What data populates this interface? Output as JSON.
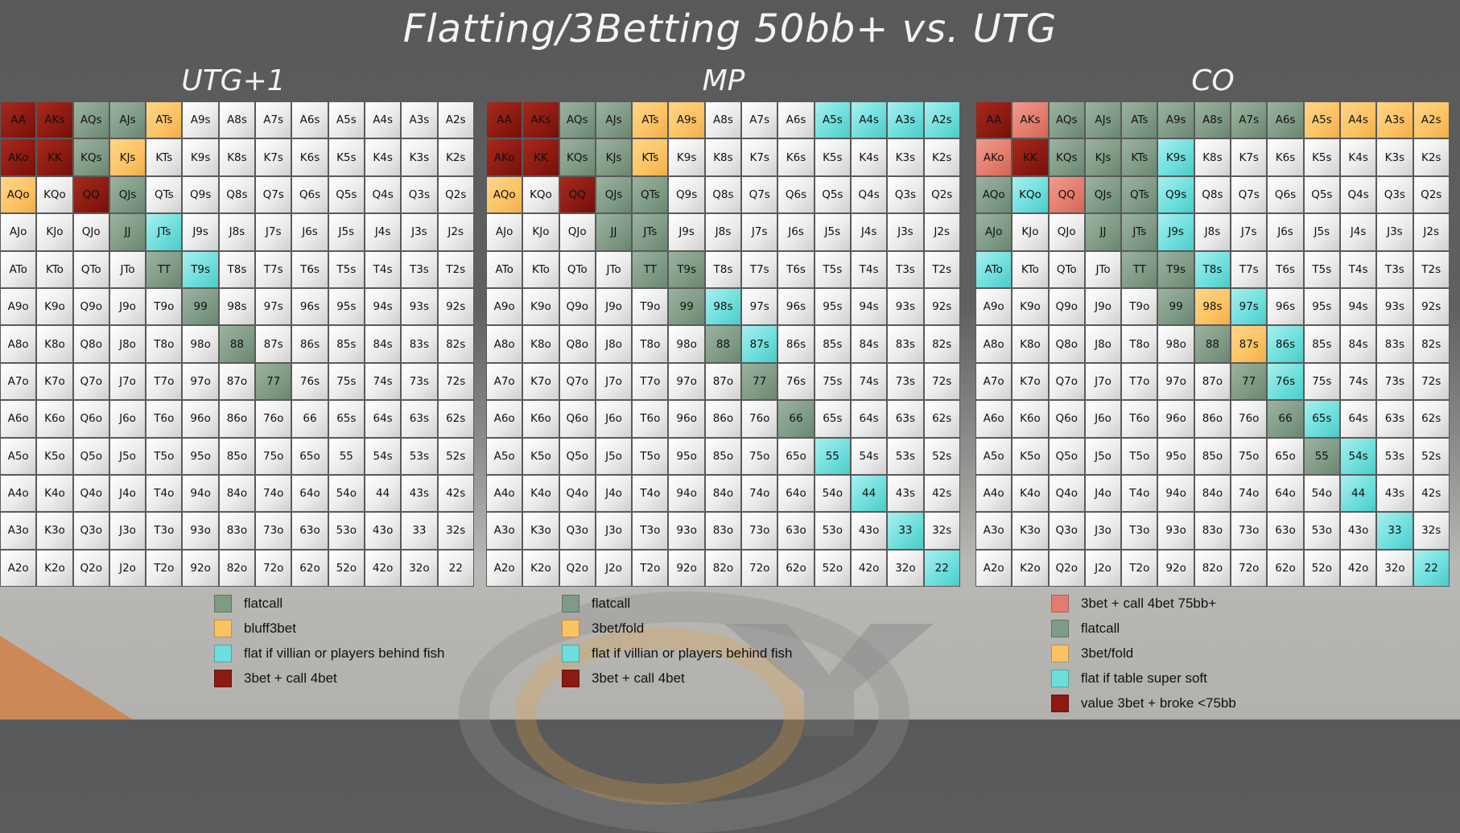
{
  "title": "Flatting/3Betting 50bb+ vs. UTG",
  "colors": {
    "flat": "#7f9a85",
    "bluff": "#fcc364",
    "fish": "#6cdedc",
    "value": "#8b1a12",
    "light": "#e47c6d",
    "none": "#ececec"
  },
  "chart_data": [
    {
      "type": "table",
      "title": "UTG+1",
      "rows": [
        [
          "AA",
          "AKs",
          "AQs",
          "AJs",
          "ATs",
          "A9s",
          "A8s",
          "A7s",
          "A6s",
          "A5s",
          "A4s",
          "A3s",
          "A2s"
        ],
        [
          "AKo",
          "KK",
          "KQs",
          "KJs",
          "KTs",
          "K9s",
          "K8s",
          "K7s",
          "K6s",
          "K5s",
          "K4s",
          "K3s",
          "K2s"
        ],
        [
          "AQo",
          "KQo",
          "QQ",
          "QJs",
          "QTs",
          "Q9s",
          "Q8s",
          "Q7s",
          "Q6s",
          "Q5s",
          "Q4s",
          "Q3s",
          "Q2s"
        ],
        [
          "AJo",
          "KJo",
          "QJo",
          "JJ",
          "JTs",
          "J9s",
          "J8s",
          "J7s",
          "J6s",
          "J5s",
          "J4s",
          "J3s",
          "J2s"
        ],
        [
          "ATo",
          "KTo",
          "QTo",
          "JTo",
          "TT",
          "T9s",
          "T8s",
          "T7s",
          "T6s",
          "T5s",
          "T4s",
          "T3s",
          "T2s"
        ],
        [
          "A9o",
          "K9o",
          "Q9o",
          "J9o",
          "T9o",
          "99",
          "98s",
          "97s",
          "96s",
          "95s",
          "94s",
          "93s",
          "92s"
        ],
        [
          "A8o",
          "K8o",
          "Q8o",
          "J8o",
          "T8o",
          "98o",
          "88",
          "87s",
          "86s",
          "85s",
          "84s",
          "83s",
          "82s"
        ],
        [
          "A7o",
          "K7o",
          "Q7o",
          "J7o",
          "T7o",
          "97o",
          "87o",
          "77",
          "76s",
          "75s",
          "74s",
          "73s",
          "72s"
        ],
        [
          "A6o",
          "K6o",
          "Q6o",
          "J6o",
          "T6o",
          "96o",
          "86o",
          "76o",
          "66",
          "65s",
          "64s",
          "63s",
          "62s"
        ],
        [
          "A5o",
          "K5o",
          "Q5o",
          "J5o",
          "T5o",
          "95o",
          "85o",
          "75o",
          "65o",
          "55",
          "54s",
          "53s",
          "52s"
        ],
        [
          "A4o",
          "K4o",
          "Q4o",
          "J4o",
          "T4o",
          "94o",
          "84o",
          "74o",
          "64o",
          "54o",
          "44",
          "43s",
          "42s"
        ],
        [
          "A3o",
          "K3o",
          "Q3o",
          "J3o",
          "T3o",
          "93o",
          "83o",
          "73o",
          "63o",
          "53o",
          "43o",
          "33",
          "32s"
        ],
        [
          "A2o",
          "K2o",
          "Q2o",
          "J2o",
          "T2o",
          "92o",
          "82o",
          "72o",
          "62o",
          "52o",
          "42o",
          "32o",
          "22"
        ]
      ],
      "categories": {
        "value": [
          "AA",
          "AKs",
          "AKo",
          "KK",
          "QQ"
        ],
        "flat": [
          "AQs",
          "AJs",
          "KQs",
          "QJs",
          "JJ",
          "TT",
          "99",
          "88",
          "77"
        ],
        "bluff": [
          "ATs",
          "KJs",
          "AQo"
        ],
        "fish": [
          "JTs",
          "T9s"
        ]
      },
      "legend": [
        {
          "key": "flat",
          "label": "flatcall"
        },
        {
          "key": "bluff",
          "label": "bluff3bet"
        },
        {
          "key": "fish",
          "label": "flat if villian or players behind fish"
        },
        {
          "key": "value",
          "label": "3bet + call 4bet"
        }
      ]
    },
    {
      "type": "table",
      "title": "MP",
      "rows": [
        [
          "AA",
          "AKs",
          "AQs",
          "AJs",
          "ATs",
          "A9s",
          "A8s",
          "A7s",
          "A6s",
          "A5s",
          "A4s",
          "A3s",
          "A2s"
        ],
        [
          "AKo",
          "KK",
          "KQs",
          "KJs",
          "KTs",
          "K9s",
          "K8s",
          "K7s",
          "K6s",
          "K5s",
          "K4s",
          "K3s",
          "K2s"
        ],
        [
          "AQo",
          "KQo",
          "QQ",
          "QJs",
          "QTs",
          "Q9s",
          "Q8s",
          "Q7s",
          "Q6s",
          "Q5s",
          "Q4s",
          "Q3s",
          "Q2s"
        ],
        [
          "AJo",
          "KJo",
          "QJo",
          "JJ",
          "JTs",
          "J9s",
          "J8s",
          "J7s",
          "J6s",
          "J5s",
          "J4s",
          "J3s",
          "J2s"
        ],
        [
          "ATo",
          "KTo",
          "QTo",
          "JTo",
          "TT",
          "T9s",
          "T8s",
          "T7s",
          "T6s",
          "T5s",
          "T4s",
          "T3s",
          "T2s"
        ],
        [
          "A9o",
          "K9o",
          "Q9o",
          "J9o",
          "T9o",
          "99",
          "98s",
          "97s",
          "96s",
          "95s",
          "94s",
          "93s",
          "92s"
        ],
        [
          "A8o",
          "K8o",
          "Q8o",
          "J8o",
          "T8o",
          "98o",
          "88",
          "87s",
          "86s",
          "85s",
          "84s",
          "83s",
          "82s"
        ],
        [
          "A7o",
          "K7o",
          "Q7o",
          "J7o",
          "T7o",
          "97o",
          "87o",
          "77",
          "76s",
          "75s",
          "74s",
          "73s",
          "72s"
        ],
        [
          "A6o",
          "K6o",
          "Q6o",
          "J6o",
          "T6o",
          "96o",
          "86o",
          "76o",
          "66",
          "65s",
          "64s",
          "63s",
          "62s"
        ],
        [
          "A5o",
          "K5o",
          "Q5o",
          "J5o",
          "T5o",
          "95o",
          "85o",
          "75o",
          "65o",
          "55",
          "54s",
          "53s",
          "52s"
        ],
        [
          "A4o",
          "K4o",
          "Q4o",
          "J4o",
          "T4o",
          "94o",
          "84o",
          "74o",
          "64o",
          "54o",
          "44",
          "43s",
          "42s"
        ],
        [
          "A3o",
          "K3o",
          "Q3o",
          "J3o",
          "T3o",
          "93o",
          "83o",
          "73o",
          "63o",
          "53o",
          "43o",
          "33",
          "32s"
        ],
        [
          "A2o",
          "K2o",
          "Q2o",
          "J2o",
          "T2o",
          "92o",
          "82o",
          "72o",
          "62o",
          "52o",
          "42o",
          "32o",
          "22"
        ]
      ],
      "categories": {
        "value": [
          "AA",
          "AKs",
          "AKo",
          "KK",
          "QQ"
        ],
        "flat": [
          "AQs",
          "AJs",
          "KQs",
          "KJs",
          "QJs",
          "QTs",
          "JJ",
          "JTs",
          "TT",
          "T9s",
          "99",
          "88",
          "77",
          "66"
        ],
        "bluff": [
          "ATs",
          "A9s",
          "KTs",
          "AQo"
        ],
        "fish": [
          "A5s",
          "A4s",
          "A3s",
          "A2s",
          "98s",
          "87s",
          "55",
          "44",
          "33",
          "22"
        ]
      },
      "legend": [
        {
          "key": "flat",
          "label": "flatcall"
        },
        {
          "key": "bluff",
          "label": "3bet/fold"
        },
        {
          "key": "fish",
          "label": "flat if villian or players behind fish"
        },
        {
          "key": "value",
          "label": "3bet + call 4bet"
        }
      ]
    },
    {
      "type": "table",
      "title": "CO",
      "rows": [
        [
          "AA",
          "AKs",
          "AQs",
          "AJs",
          "ATs",
          "A9s",
          "A8s",
          "A7s",
          "A6s",
          "A5s",
          "A4s",
          "A3s",
          "A2s"
        ],
        [
          "AKo",
          "KK",
          "KQs",
          "KJs",
          "KTs",
          "K9s",
          "K8s",
          "K7s",
          "K6s",
          "K5s",
          "K4s",
          "K3s",
          "K2s"
        ],
        [
          "AQo",
          "KQo",
          "QQ",
          "QJs",
          "QTs",
          "Q9s",
          "Q8s",
          "Q7s",
          "Q6s",
          "Q5s",
          "Q4s",
          "Q3s",
          "Q2s"
        ],
        [
          "AJo",
          "KJo",
          "QJo",
          "JJ",
          "JTs",
          "J9s",
          "J8s",
          "J7s",
          "J6s",
          "J5s",
          "J4s",
          "J3s",
          "J2s"
        ],
        [
          "ATo",
          "KTo",
          "QTo",
          "JTo",
          "TT",
          "T9s",
          "T8s",
          "T7s",
          "T6s",
          "T5s",
          "T4s",
          "T3s",
          "T2s"
        ],
        [
          "A9o",
          "K9o",
          "Q9o",
          "J9o",
          "T9o",
          "99",
          "98s",
          "97s",
          "96s",
          "95s",
          "94s",
          "93s",
          "92s"
        ],
        [
          "A8o",
          "K8o",
          "Q8o",
          "J8o",
          "T8o",
          "98o",
          "88",
          "87s",
          "86s",
          "85s",
          "84s",
          "83s",
          "82s"
        ],
        [
          "A7o",
          "K7o",
          "Q7o",
          "J7o",
          "T7o",
          "97o",
          "87o",
          "77",
          "76s",
          "75s",
          "74s",
          "73s",
          "72s"
        ],
        [
          "A6o",
          "K6o",
          "Q6o",
          "J6o",
          "T6o",
          "96o",
          "86o",
          "76o",
          "66",
          "65s",
          "64s",
          "63s",
          "62s"
        ],
        [
          "A5o",
          "K5o",
          "Q5o",
          "J5o",
          "T5o",
          "95o",
          "85o",
          "75o",
          "65o",
          "55",
          "54s",
          "53s",
          "52s"
        ],
        [
          "A4o",
          "K4o",
          "Q4o",
          "J4o",
          "T4o",
          "94o",
          "84o",
          "74o",
          "64o",
          "54o",
          "44",
          "43s",
          "42s"
        ],
        [
          "A3o",
          "K3o",
          "Q3o",
          "J3o",
          "T3o",
          "93o",
          "83o",
          "73o",
          "63o",
          "53o",
          "43o",
          "33",
          "32s"
        ],
        [
          "A2o",
          "K2o",
          "Q2o",
          "J2o",
          "T2o",
          "92o",
          "82o",
          "72o",
          "62o",
          "52o",
          "42o",
          "32o",
          "22"
        ]
      ],
      "categories": {
        "value": [
          "AA",
          "KK"
        ],
        "light": [
          "AKs",
          "AKo",
          "QQ"
        ],
        "flat": [
          "AQs",
          "AJs",
          "ATs",
          "A9s",
          "A8s",
          "A7s",
          "A6s",
          "KQs",
          "KJs",
          "KTs",
          "QJs",
          "QTs",
          "AQo",
          "JJ",
          "JTs",
          "AJo",
          "TT",
          "T9s",
          "99",
          "88",
          "77",
          "66",
          "55"
        ],
        "bluff": [
          "A5s",
          "A4s",
          "A3s",
          "A2s",
          "98s",
          "87s"
        ],
        "fish": [
          "K9s",
          "Q9s",
          "KQo",
          "J9s",
          "ATo",
          "T8s",
          "97s",
          "86s",
          "76s",
          "65s",
          "54s",
          "44",
          "33",
          "22"
        ]
      },
      "legend": [
        {
          "key": "light",
          "label": "3bet + call 4bet 75bb+"
        },
        {
          "key": "flat",
          "label": "flatcall"
        },
        {
          "key": "bluff",
          "label": "3bet/fold"
        },
        {
          "key": "fish",
          "label": "flat if table super soft"
        },
        {
          "key": "value",
          "label": "value 3bet + broke <75bb"
        }
      ]
    }
  ]
}
